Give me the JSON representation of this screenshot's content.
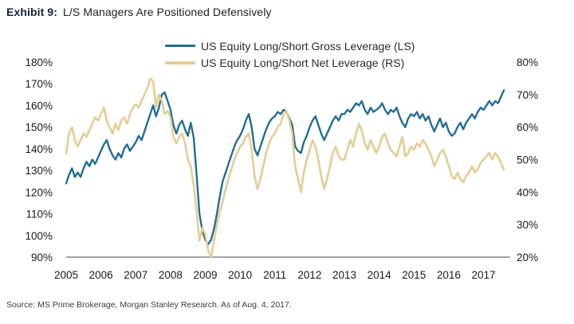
{
  "header": {
    "exhibit_label": "Exhibit 9:",
    "title": "L/S Managers Are Positioned Defensively"
  },
  "source_note": "Source: MS Prime Brokerage, Morgan Stanley Research. As of Aug. 4, 2017.",
  "colors": {
    "gross_line": "#236e96",
    "net_line": "#e5cd96",
    "axis_line": "#4d4d4d",
    "axis_text": "#1a1a1a",
    "exhibit_label_text": "#14223c"
  },
  "chart_data": {
    "type": "line",
    "title": "",
    "x_start": "2005-01",
    "x_end": "2017-08",
    "x_frequency": "monthly",
    "x_tick_labels": [
      "2005",
      "2006",
      "2007",
      "2008",
      "2009",
      "2010",
      "2011",
      "2012",
      "2013",
      "2014",
      "2015",
      "2016",
      "2017"
    ],
    "left_axis": {
      "min": 90,
      "max": 180,
      "ticks": [
        "180%",
        "170%",
        "160%",
        "150%",
        "140%",
        "130%",
        "120%",
        "110%",
        "100%",
        "90%"
      ]
    },
    "right_axis": {
      "min": 20,
      "max": 80,
      "ticks": [
        "80%",
        "70%",
        "60%",
        "50%",
        "40%",
        "30%",
        "20%"
      ]
    },
    "grid": false,
    "legend_position": "top-center",
    "series": [
      {
        "name": "US Equity Long/Short Gross Leverage (LS)",
        "axis": "left",
        "color": "#236e96",
        "values": [
          124,
          128,
          131,
          127,
          129,
          127,
          131,
          134,
          132,
          135,
          133,
          136,
          139,
          142,
          144,
          140,
          137,
          135,
          138,
          136,
          140,
          142,
          139,
          141,
          143,
          146,
          144,
          148,
          152,
          156,
          160,
          155,
          159,
          165,
          166,
          162,
          158,
          151,
          147,
          151,
          153,
          149,
          146,
          152,
          145,
          128,
          110,
          102,
          98,
          96,
          98,
          103,
          110,
          118,
          125,
          129,
          133,
          137,
          141,
          144,
          146,
          149,
          153,
          156,
          150,
          140,
          137,
          141,
          145,
          149,
          152,
          154,
          155,
          157,
          156,
          158,
          157,
          154,
          151,
          141,
          139,
          138,
          143,
          146,
          150,
          153,
          155,
          151,
          147,
          144,
          147,
          150,
          153,
          155,
          153,
          156,
          156,
          158,
          157,
          159,
          161,
          160,
          162,
          158,
          156,
          159,
          157,
          158,
          159,
          161,
          158,
          156,
          158,
          157,
          159,
          155,
          152,
          150,
          154,
          156,
          155,
          157,
          154,
          156,
          153,
          155,
          151,
          148,
          151,
          154,
          150,
          152,
          148,
          146,
          147,
          150,
          152,
          149,
          152,
          154,
          156,
          154,
          157,
          159,
          158,
          160,
          162,
          160,
          162,
          161,
          164,
          167
        ]
      },
      {
        "name": "US Equity Long/Short Net Leverage (RS)",
        "axis": "right",
        "color": "#e5cd96",
        "values": [
          52,
          58,
          60,
          56,
          54,
          56,
          58,
          57,
          59,
          61,
          63,
          62,
          64,
          66,
          62,
          60,
          58,
          61,
          59,
          62,
          63,
          61,
          64,
          66,
          67,
          66,
          68,
          70,
          72,
          75,
          74,
          66,
          70,
          68,
          64,
          65,
          63,
          57,
          55,
          57,
          58,
          55,
          50,
          48,
          42,
          34,
          25,
          29,
          27,
          22,
          20,
          25,
          30,
          34,
          37,
          41,
          44,
          47,
          50,
          52,
          54,
          55,
          57,
          58,
          53,
          45,
          41,
          44,
          48,
          52,
          55,
          57,
          58,
          60,
          61,
          64,
          65,
          62,
          58,
          48,
          44,
          40,
          46,
          50,
          53,
          56,
          54,
          50,
          45,
          41,
          44,
          48,
          52,
          54,
          51,
          50,
          50,
          53,
          56,
          54,
          58,
          61,
          59,
          55,
          53,
          56,
          54,
          52,
          54,
          57,
          58,
          55,
          53,
          52,
          51,
          54,
          57,
          51,
          52,
          54,
          53,
          55,
          54,
          56,
          55,
          53,
          51,
          48,
          50,
          52,
          53,
          51,
          48,
          45,
          44,
          46,
          44,
          43,
          45,
          46,
          48,
          46,
          47,
          49,
          50,
          51,
          52,
          50,
          52,
          51,
          49,
          47
        ]
      }
    ]
  }
}
